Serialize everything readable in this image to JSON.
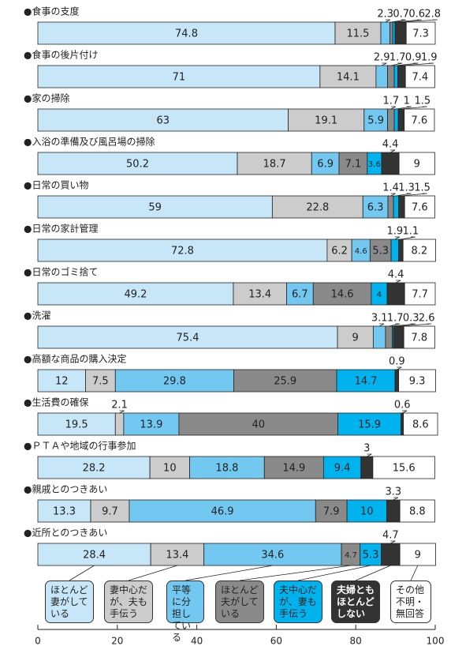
{
  "chart_data": {
    "type": "stacked-bar-horizontal",
    "categories": [
      "●食事の支度",
      "●食事の後片付け",
      "●家の掃除",
      "●入浴の準備及び風呂場の掃除",
      "●日常の買い物",
      "●日常の家計管理",
      "●日常のゴミ捨て",
      "●洗濯",
      "●高額な商品の購入決定",
      "●生活費の確保",
      "●ＰＴＡや地域の行事参加",
      "●親戚とのつきあい",
      "●近所とのつきあい"
    ],
    "series": [
      {
        "name": "ほとんど妻がしている",
        "color": "#c7e7f9",
        "values": [
          74.8,
          71.0,
          63.0,
          50.2,
          59.0,
          72.8,
          49.2,
          75.4,
          12.0,
          19.5,
          28.2,
          13.3,
          28.4
        ]
      },
      {
        "name": "妻中心だが、夫も手伝う",
        "color": "#cccccc",
        "values": [
          11.5,
          14.1,
          19.1,
          18.7,
          22.8,
          6.2,
          13.4,
          9.0,
          7.5,
          2.1,
          10.0,
          9.7,
          13.4
        ]
      },
      {
        "name": "平等に分担している",
        "color": "#72c8f0",
        "values": [
          2.3,
          2.9,
          5.9,
          6.9,
          6.3,
          4.6,
          6.7,
          3.1,
          29.8,
          13.9,
          18.8,
          46.9,
          34.6
        ]
      },
      {
        "name": "ほとんど夫がしている",
        "color": "#8a8a8a",
        "values": [
          0.7,
          1.7,
          1.7,
          7.1,
          1.4,
          5.3,
          14.6,
          1.7,
          25.9,
          40.0,
          14.9,
          7.9,
          4.7
        ]
      },
      {
        "name": "夫中心だが、妻も手伝う",
        "color": "#00b3ee",
        "values": [
          0.6,
          0.9,
          1.0,
          3.6,
          1.3,
          1.9,
          4.0,
          0.3,
          14.7,
          15.9,
          9.4,
          10.0,
          5.3
        ]
      },
      {
        "name": "夫婦ともほとんどしない",
        "color": "#333333",
        "values": [
          2.8,
          1.9,
          1.5,
          4.4,
          1.5,
          1.1,
          4.4,
          2.6,
          0.9,
          0.6,
          3.0,
          3.3,
          4.7
        ]
      },
      {
        "name": "その他不明・無回答",
        "color": "#ffffff",
        "values": [
          7.3,
          7.4,
          7.6,
          9.0,
          7.6,
          8.2,
          7.7,
          7.8,
          9.3,
          8.6,
          15.6,
          8.8,
          9.0
        ]
      }
    ],
    "xlim": [
      0,
      100
    ],
    "xticks": [
      0,
      20,
      40,
      60,
      80,
      100
    ]
  }
}
